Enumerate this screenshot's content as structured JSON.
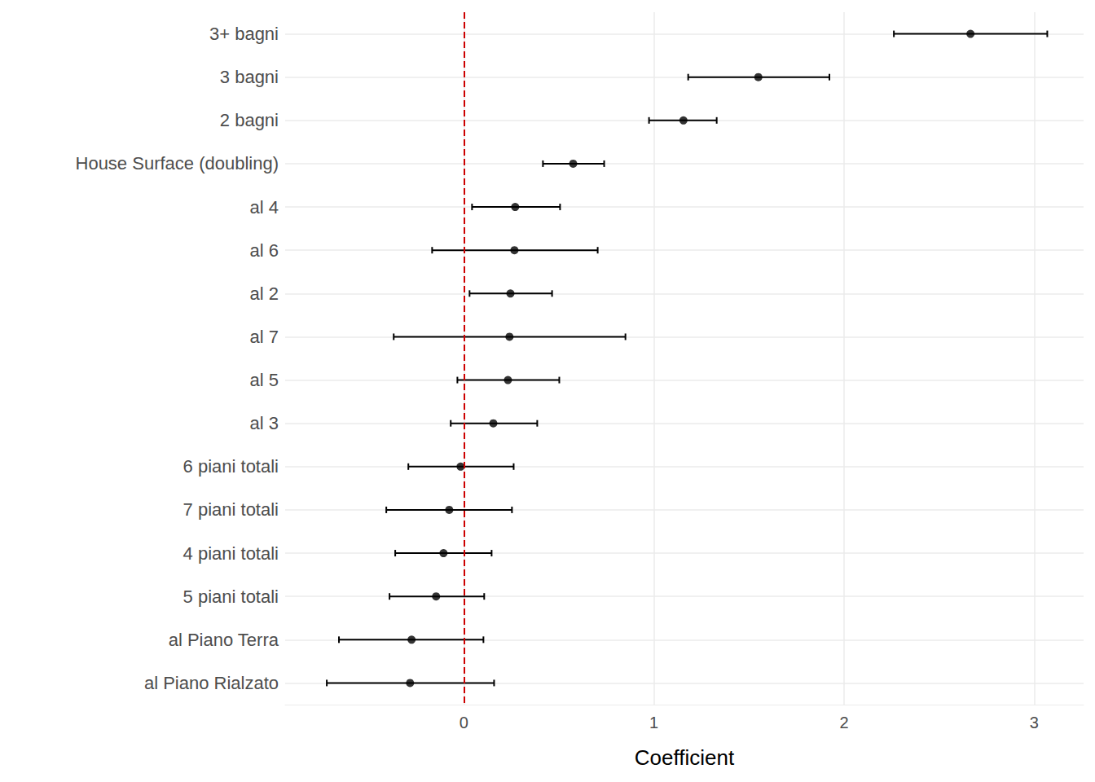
{
  "chart_data": {
    "type": "scatter",
    "x_label": "Coefficient",
    "orientation": "horizontal",
    "categories": [
      "3+ bagni",
      "3 bagni",
      "2 bagni",
      "House Surface (doubling)",
      "al 4",
      "al 6",
      "al 2",
      "al 7",
      "al 5",
      "al 3",
      "6 piani totali",
      "7 piani totali",
      "4 piani totali",
      "5 piani totali",
      "al Piano Terra",
      "al Piano Rialzato"
    ],
    "values": [
      2.665,
      1.549,
      1.155,
      0.575,
      0.27,
      0.266,
      0.245,
      0.24,
      0.232,
      0.155,
      -0.017,
      -0.077,
      -0.107,
      -0.146,
      -0.275,
      -0.283
    ],
    "ci_low": [
      2.262,
      1.18,
      0.974,
      0.416,
      0.043,
      -0.167,
      0.03,
      -0.369,
      -0.034,
      -0.069,
      -0.292,
      -0.408,
      -0.361,
      -0.391,
      -0.657,
      -0.721
    ],
    "ci_high": [
      3.069,
      1.923,
      1.33,
      0.738,
      0.506,
      0.704,
      0.464,
      0.85,
      0.502,
      0.386,
      0.262,
      0.253,
      0.146,
      0.107,
      0.103,
      0.159
    ],
    "xlim": [
      -0.94,
      3.26
    ],
    "xticks": [
      0,
      1,
      2,
      3
    ],
    "color": "#000000",
    "marker": "circle",
    "grid": true,
    "ref_line": {
      "value": 0,
      "color": "#cc0000",
      "line_style": "dashed"
    }
  }
}
